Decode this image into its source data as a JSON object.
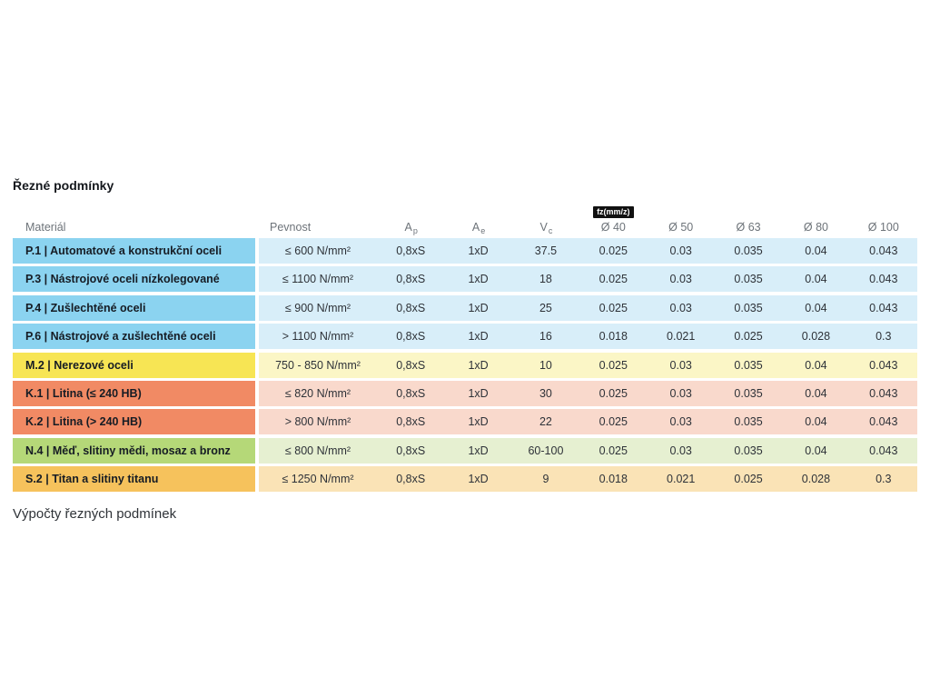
{
  "page": {
    "title": "Řezné podmínky",
    "footer": "Výpočty řezných podmínek"
  },
  "table": {
    "headers": {
      "material": "Materiál",
      "pevnost": "Pevnost",
      "ap_base": "A",
      "ap_sub": "p",
      "ae_base": "A",
      "ae_sub": "e",
      "vc_base": "V",
      "vc_sub": "c",
      "fz_badge": "fz(mm/z)",
      "d40": "Ø 40",
      "d50": "Ø 50",
      "d63": "Ø 63",
      "d80": "Ø 80",
      "d100": "Ø 100"
    },
    "colors": {
      "blue": {
        "strong": "#8BD3F0",
        "light": "#D8EEF9"
      },
      "yellow": {
        "strong": "#F7E554",
        "light": "#FBF6C6"
      },
      "salmon": {
        "strong": "#F18A64",
        "light": "#F9D9CC"
      },
      "green": {
        "strong": "#B5D878",
        "light": "#E6F0D1"
      },
      "orange": {
        "strong": "#F6C25C",
        "light": "#FAE3B6"
      }
    },
    "rows": [
      {
        "material": "P.1 | Automatové a konstrukční oceli",
        "pevnost": "≤ 600 N/mm²",
        "ap": "0,8xS",
        "ae": "1xD",
        "vc": "37.5",
        "d40": "0.025",
        "d50": "0.03",
        "d63": "0.035",
        "d80": "0.04",
        "d100": "0.043",
        "color_group": "blue"
      },
      {
        "material": "P.3 | Nástrojové oceli nízkolegované",
        "pevnost": "≤ 1100 N/mm²",
        "ap": "0,8xS",
        "ae": "1xD",
        "vc": "18",
        "d40": "0.025",
        "d50": "0.03",
        "d63": "0.035",
        "d80": "0.04",
        "d100": "0.043",
        "color_group": "blue"
      },
      {
        "material": "P.4 | Zušlechtěné oceli",
        "pevnost": "≤ 900 N/mm²",
        "ap": "0,8xS",
        "ae": "1xD",
        "vc": "25",
        "d40": "0.025",
        "d50": "0.03",
        "d63": "0.035",
        "d80": "0.04",
        "d100": "0.043",
        "color_group": "blue"
      },
      {
        "material": "P.6 | Nástrojové a zušlechtěné oceli",
        "pevnost": "> 1100 N/mm²",
        "ap": "0,8xS",
        "ae": "1xD",
        "vc": "16",
        "d40": "0.018",
        "d50": "0.021",
        "d63": "0.025",
        "d80": "0.028",
        "d100": "0.3",
        "color_group": "blue"
      },
      {
        "material": "M.2 | Nerezové oceli",
        "pevnost": "750 - 850 N/mm²",
        "ap": "0,8xS",
        "ae": "1xD",
        "vc": "10",
        "d40": "0.025",
        "d50": "0.03",
        "d63": "0.035",
        "d80": "0.04",
        "d100": "0.043",
        "color_group": "yellow"
      },
      {
        "material": "K.1 | Litina (≤ 240 HB)",
        "pevnost": "≤ 820 N/mm²",
        "ap": "0,8xS",
        "ae": "1xD",
        "vc": "30",
        "d40": "0.025",
        "d50": "0.03",
        "d63": "0.035",
        "d80": "0.04",
        "d100": "0.043",
        "color_group": "salmon"
      },
      {
        "material": "K.2 | Litina (> 240 HB)",
        "pevnost": "> 800 N/mm²",
        "ap": "0,8xS",
        "ae": "1xD",
        "vc": "22",
        "d40": "0.025",
        "d50": "0.03",
        "d63": "0.035",
        "d80": "0.04",
        "d100": "0.043",
        "color_group": "salmon"
      },
      {
        "material": "N.4 | Měď, slitiny mědi, mosaz a bronz",
        "pevnost": "≤ 800 N/mm²",
        "ap": "0,8xS",
        "ae": "1xD",
        "vc": "60-100",
        "d40": "0.025",
        "d50": "0.03",
        "d63": "0.035",
        "d80": "0.04",
        "d100": "0.043",
        "color_group": "green"
      },
      {
        "material": "S.2 | Titan a slitiny titanu",
        "pevnost": "≤ 1250 N/mm²",
        "ap": "0,8xS",
        "ae": "1xD",
        "vc": "9",
        "d40": "0.018",
        "d50": "0.021",
        "d63": "0.025",
        "d80": "0.028",
        "d100": "0.3",
        "color_group": "orange"
      }
    ]
  }
}
